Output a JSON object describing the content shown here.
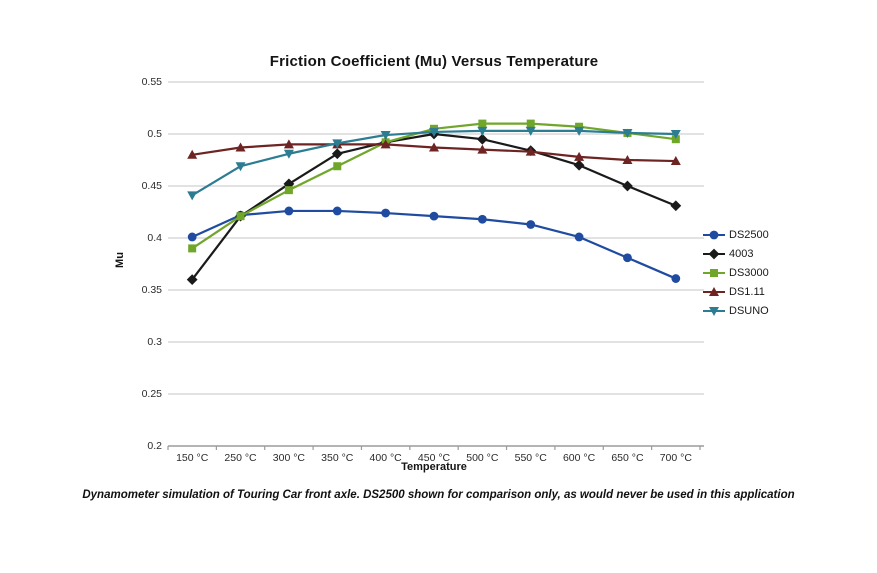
{
  "chart_data": {
    "type": "line",
    "title": "Friction Coefficient (Mu) Versus Temperature",
    "xlabel": "Temperature",
    "ylabel": "Mu",
    "categories": [
      "150 °C",
      "250 °C",
      "300 °C",
      "350 °C",
      "400 °C",
      "450 °C",
      "500 °C",
      "550 °C",
      "600 °C",
      "650 °C",
      "700 °C"
    ],
    "series": [
      {
        "name": "DS2500",
        "color": "#1F4BA0",
        "marker": "circle",
        "values": [
          0.401,
          0.422,
          0.426,
          0.426,
          0.424,
          0.421,
          0.418,
          0.413,
          0.401,
          0.381,
          0.361
        ]
      },
      {
        "name": "4003",
        "color": "#1A1A1A",
        "marker": "diamond",
        "values": [
          0.36,
          0.421,
          0.452,
          0.481,
          0.492,
          0.5,
          0.495,
          0.484,
          0.47,
          0.45,
          0.431
        ]
      },
      {
        "name": "DS3000",
        "color": "#70A62A",
        "marker": "square",
        "values": [
          0.39,
          0.421,
          0.446,
          0.469,
          0.492,
          0.505,
          0.51,
          0.51,
          0.507,
          0.501,
          0.495
        ]
      },
      {
        "name": "DS1.11",
        "color": "#6E2422",
        "marker": "triangle-up",
        "values": [
          0.48,
          0.487,
          0.49,
          0.49,
          0.49,
          0.487,
          0.485,
          0.483,
          0.478,
          0.475,
          0.474
        ]
      },
      {
        "name": "DSUNO",
        "color": "#2C7C92",
        "marker": "triangle-down",
        "values": [
          0.441,
          0.469,
          0.481,
          0.491,
          0.499,
          0.502,
          0.503,
          0.503,
          0.503,
          0.501,
          0.5
        ]
      }
    ],
    "ylim": [
      0.2,
      0.55
    ],
    "ytick_step": 0.05,
    "ytick_labels": [
      "0.55",
      "0.5",
      "0.45",
      "0.4",
      "0.35",
      "0.3",
      "0.25",
      "0.2"
    ],
    "grid": "horizontal",
    "legend_position": "right"
  },
  "caption": "Dynamometer simulation of Touring Car front axle. DS2500 shown for comparison only, as would never be used in this application",
  "colors": {
    "gridline": "#C6C6C6",
    "axis": "#9B9B9B",
    "background": "#FFFFFF"
  }
}
